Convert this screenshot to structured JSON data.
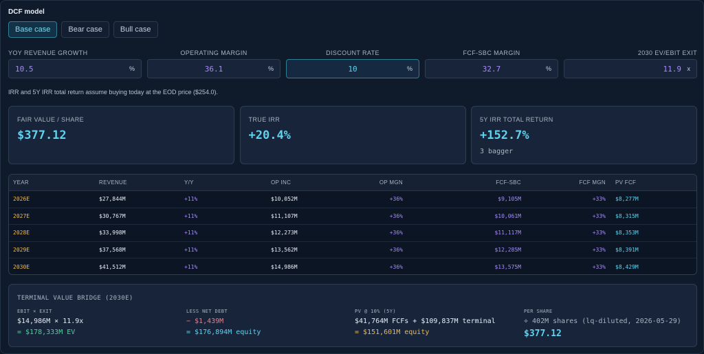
{
  "title": "DCF model",
  "tabs": [
    {
      "label": "Base case",
      "active": true
    },
    {
      "label": "Bear case",
      "active": false
    },
    {
      "label": "Bull case",
      "active": false
    }
  ],
  "inputs": [
    {
      "label": "YOY REVENUE GROWTH",
      "value": "10.5",
      "unit": "%"
    },
    {
      "label": "OPERATING MARGIN",
      "value": "36.1",
      "unit": "%"
    },
    {
      "label": "DISCOUNT RATE",
      "value": "10",
      "unit": "%"
    },
    {
      "label": "FCF-SBC MARGIN",
      "value": "32.7",
      "unit": "%"
    },
    {
      "label": "2030 EV/EBIT EXIT",
      "value": "11.9",
      "unit": "x"
    }
  ],
  "note": "IRR and 5Y IRR total return assume buying today at the EOD price ($254.0).",
  "cards": [
    {
      "label": "FAIR VALUE / SHARE",
      "value": "$377.12",
      "sub": ""
    },
    {
      "label": "TRUE IRR",
      "value": "+20.4%",
      "sub": ""
    },
    {
      "label": "5Y IRR TOTAL RETURN",
      "value": "+152.7%",
      "sub": "3 bagger"
    }
  ],
  "table": {
    "headers": [
      "YEAR",
      "REVENUE",
      "Y/Y",
      "OP INC",
      "OP MGN",
      "FCF-SBC",
      "FCF MGN",
      "PV FCF"
    ],
    "rows": [
      [
        "2026E",
        "$27,844M",
        "+11%",
        "$10,052M",
        "+36%",
        "$9,105M",
        "+33%",
        "$8,277M"
      ],
      [
        "2027E",
        "$30,767M",
        "+11%",
        "$11,107M",
        "+36%",
        "$10,061M",
        "+33%",
        "$8,315M"
      ],
      [
        "2028E",
        "$33,998M",
        "+11%",
        "$12,273M",
        "+36%",
        "$11,117M",
        "+33%",
        "$8,353M"
      ],
      [
        "2029E",
        "$37,568M",
        "+11%",
        "$13,562M",
        "+36%",
        "$12,285M",
        "+33%",
        "$8,391M"
      ],
      [
        "2030E",
        "$41,512M",
        "+11%",
        "$14,986M",
        "+36%",
        "$13,575M",
        "+33%",
        "$8,429M"
      ]
    ]
  },
  "bridge": {
    "title": "TERMINAL VALUE BRIDGE (2030E)",
    "ebit": {
      "label": "EBIT × EXIT",
      "line1": "$14,986M × 11.9x",
      "line2": "= $178,333M EV"
    },
    "debt": {
      "label": "LESS NET DEBT",
      "line1": "− $1,439M",
      "line2": "= $176,894M equity"
    },
    "pv": {
      "label": "PV @ 10% (5Y)",
      "line1": "$41,764M FCFs + $109,837M terminal",
      "line2": "= $151,601M equity"
    },
    "per_share": {
      "label": "PER SHARE",
      "line1": "÷ 402M shares (lq-diluted, 2026-05-29)",
      "line2": "$377.12"
    }
  }
}
